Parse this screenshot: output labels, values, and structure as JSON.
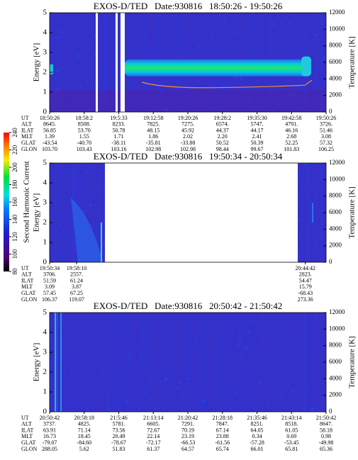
{
  "chart_data": [
    {
      "type": "spectrogram",
      "title": "EXOS-D/TED   Date:930816   18:50:26 - 19:50:26",
      "ylabel": "Energy [eV]",
      "y2label": "Temperature [K]",
      "ylim": [
        0,
        5
      ],
      "yticks": [
        0,
        1,
        2,
        3,
        4,
        5
      ],
      "y2lim": [
        0,
        12000
      ],
      "y2ticks": [
        0,
        2000,
        4000,
        6000,
        8000,
        10000,
        12000
      ],
      "orbit": {
        "labels": [
          "UT",
          "ALT",
          "ILAT",
          "MLT",
          "GLAT",
          "GLON"
        ],
        "columns": [
          [
            "18:50:26",
            "8645.",
            "56.85",
            "1.39",
            "-43.54",
            "103.70"
          ],
          [
            "18:58:2",
            "8508.",
            "53.70",
            "1.55",
            "-40.70",
            "103.43"
          ],
          [
            "19:5:33",
            "8233.",
            "50.78",
            "1.71",
            "-38.11",
            "103.16"
          ],
          [
            "19:12:58",
            "7825.",
            "48.15",
            "1.86",
            "-35.81",
            "102.98"
          ],
          [
            "19:20:26",
            "7275.",
            "45.92",
            "2.02",
            "-33.88",
            "102.98"
          ],
          [
            "19:28:2",
            "6574.",
            "44.37",
            "2.20",
            "50.52",
            "98.44"
          ],
          [
            "19:35:30",
            "5747.",
            "44.17",
            "2.41",
            "50.39",
            "99.67"
          ],
          [
            "19:42:58",
            "4791.",
            "46.16",
            "2.68",
            "52.25",
            "101.83"
          ],
          [
            "19:50:26",
            "3726.",
            "51.46",
            "3.08",
            "57.32",
            "106.25"
          ]
        ]
      }
    },
    {
      "type": "spectrogram",
      "title": "EXOS-D/TED   Date:930816   19:50:34 - 20:50:34",
      "ylabel": "Energy [eV]",
      "y2label": "Temperature [K]",
      "ylim": [
        0,
        5
      ],
      "yticks": [
        0,
        1,
        2,
        3,
        4,
        5
      ],
      "y2lim": [
        0,
        12000
      ],
      "y2ticks": [
        0,
        2000,
        4000,
        6000,
        8000,
        10000,
        12000
      ],
      "orbit": {
        "labels": [
          "UT",
          "ALT",
          "ILAT",
          "MLT",
          "GLAT",
          "GLON"
        ],
        "columns": [
          [
            "19:50:34",
            "3706.",
            "51.59",
            "3.09",
            "57.45",
            "106.37"
          ],
          [
            "19:58:10",
            "2557.",
            "61.24",
            "3.87",
            "67.25",
            "119.07"
          ],
          [
            "20:44:42",
            "2823.",
            "54.47",
            "15.79",
            "-68.43",
            "273.36"
          ]
        ]
      }
    },
    {
      "type": "spectrogram",
      "title": "EXOS-D/TED   Date:930816   20:50:42 - 21:50:42",
      "ylabel": "Energy [eV]",
      "y2label": "Temperature [K]",
      "ylim": [
        0,
        5
      ],
      "yticks": [
        0,
        1,
        2,
        3,
        4,
        5
      ],
      "y2lim": [
        0,
        12000
      ],
      "y2ticks": [
        0,
        2000,
        4000,
        6000,
        8000,
        10000,
        12000
      ],
      "orbit": {
        "labels": [
          "UT",
          "ALT",
          "ILAT",
          "MLT",
          "GLAT",
          "GLON"
        ],
        "columns": [
          [
            "20:50:42",
            "3737.",
            "63.91",
            "16.73",
            "-79.07",
            "288.05"
          ],
          [
            "20:58:18",
            "4825.",
            "71.14",
            "18.45",
            "-84.60",
            "5.62"
          ],
          [
            "21:5:46",
            "5781.",
            "73.56",
            "20.49",
            "-78.67",
            "51.83"
          ],
          [
            "21:13:14",
            "6605.",
            "72.67",
            "22.14",
            "-72.17",
            "61.37"
          ],
          [
            "21:20:42",
            "7291.",
            "70.19",
            "23.19",
            "-66.53",
            "64.57"
          ],
          [
            "21:28:18",
            "7847.",
            "67.14",
            "23.88",
            "-61.56",
            "65.74"
          ],
          [
            "21:35:46",
            "8251.",
            "64.05",
            "0.34",
            "-57.28",
            "66.01"
          ],
          [
            "21:43:14",
            "8518.",
            "61.05",
            "0.69",
            "-53.45",
            "65.81"
          ],
          [
            "21:50:42",
            "8647.",
            "58.18",
            "0.98",
            "-49.98",
            "65.36"
          ]
        ]
      }
    }
  ],
  "colorbar": {
    "label": "Second Harmonic Current",
    "lim": [
      80,
      240
    ],
    "ticks": [
      80,
      100,
      120,
      140,
      160,
      180,
      200,
      220,
      240
    ]
  }
}
